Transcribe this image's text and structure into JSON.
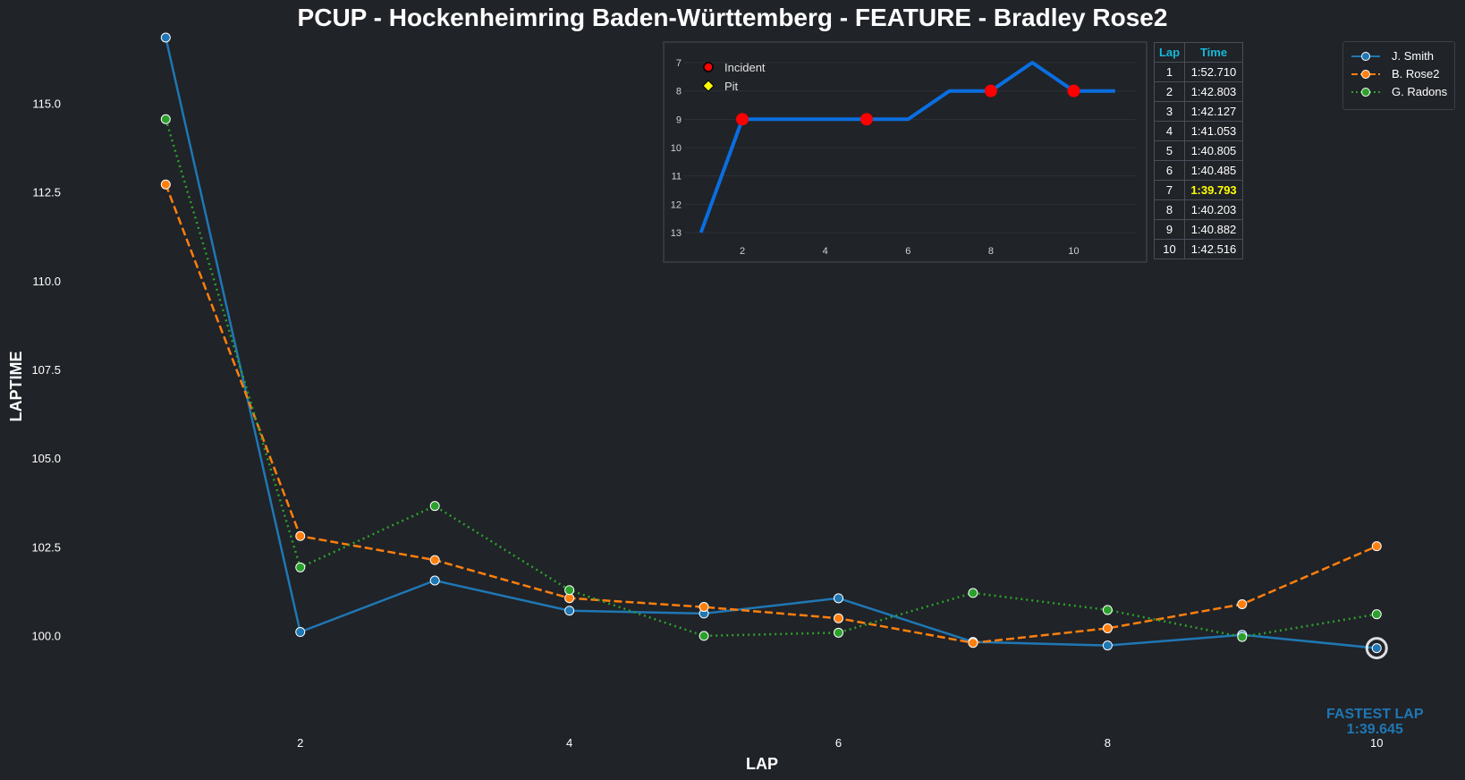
{
  "chart_data": [
    {
      "type": "line",
      "title": "PCUP - Hockenheimring Baden-Württemberg - FEATURE - Bradley Rose2",
      "xlabel": "LAP",
      "ylabel": "LAPTIME",
      "xlim": [
        0.3,
        10.55
      ],
      "ylim": [
        98.5,
        116.85
      ],
      "xticks": [
        2,
        4,
        6,
        8,
        10
      ],
      "yticks": [
        100.0,
        102.5,
        105.0,
        107.5,
        110.0,
        112.5,
        115.0
      ],
      "ytick_labels": [
        "100.0",
        "102.5",
        "105.0",
        "107.5",
        "110.0",
        "112.5",
        "115.0"
      ],
      "grid": false,
      "legend_position": "top-right",
      "series": [
        {
          "name": "J. Smith",
          "color": "#1f77b4",
          "style": "solid",
          "x": [
            1,
            2,
            3,
            4,
            5,
            6,
            7,
            8,
            9,
            10
          ],
          "y": [
            116.85,
            100.1,
            101.55,
            100.7,
            100.62,
            101.05,
            99.82,
            99.72,
            100.02,
            99.645
          ]
        },
        {
          "name": "B. Rose2",
          "color": "#ff7f0e",
          "style": "dashed",
          "x": [
            1,
            2,
            3,
            4,
            5,
            6,
            7,
            8,
            9,
            10
          ],
          "y": [
            112.71,
            102.803,
            102.127,
            101.053,
            100.805,
            100.485,
            99.793,
            100.203,
            100.882,
            102.516
          ]
        },
        {
          "name": "G. Radons",
          "color": "#2ca02c",
          "style": "dotted",
          "x": [
            1,
            2,
            3,
            4,
            5,
            6,
            7,
            8,
            9,
            10
          ],
          "y": [
            114.55,
            101.92,
            103.65,
            101.28,
            99.99,
            100.08,
            101.2,
            100.72,
            99.96,
            100.6
          ]
        }
      ],
      "annotation": {
        "label": "FASTEST LAP",
        "value": "1:39.645",
        "lap": 10,
        "laptime": 99.645,
        "color": "#1f77b4"
      }
    },
    {
      "type": "line",
      "series_label": "position",
      "xlim": [
        0.1,
        11.5
      ],
      "ylim": [
        13.2,
        6.6
      ],
      "inverted_y": true,
      "xticks": [
        2,
        4,
        6,
        8,
        10
      ],
      "yticks": [
        7,
        8,
        9,
        10,
        11,
        12,
        13
      ],
      "color": "#0a6ee0",
      "x": [
        1,
        2,
        3,
        4,
        5,
        6,
        7,
        8,
        9,
        10,
        11
      ],
      "y": [
        13,
        9,
        9,
        9,
        9,
        9,
        8,
        8,
        7,
        8,
        8
      ],
      "incidents": [
        2,
        5,
        8,
        10
      ],
      "pits": [],
      "legend": [
        {
          "label": "Incident",
          "marker": "circle",
          "color": "#ff0000"
        },
        {
          "label": "Pit",
          "marker": "diamond",
          "color": "#ffff00"
        }
      ]
    }
  ],
  "lap_table": {
    "headers": [
      "Lap",
      "Time"
    ],
    "rows": [
      {
        "lap": "1",
        "time": "1:52.710"
      },
      {
        "lap": "2",
        "time": "1:42.803"
      },
      {
        "lap": "3",
        "time": "1:42.127"
      },
      {
        "lap": "4",
        "time": "1:41.053"
      },
      {
        "lap": "5",
        "time": "1:40.805"
      },
      {
        "lap": "6",
        "time": "1:40.485"
      },
      {
        "lap": "7",
        "time": "1:39.793",
        "best": true
      },
      {
        "lap": "8",
        "time": "1:40.203"
      },
      {
        "lap": "9",
        "time": "1:40.882"
      },
      {
        "lap": "10",
        "time": "1:42.516"
      }
    ]
  }
}
